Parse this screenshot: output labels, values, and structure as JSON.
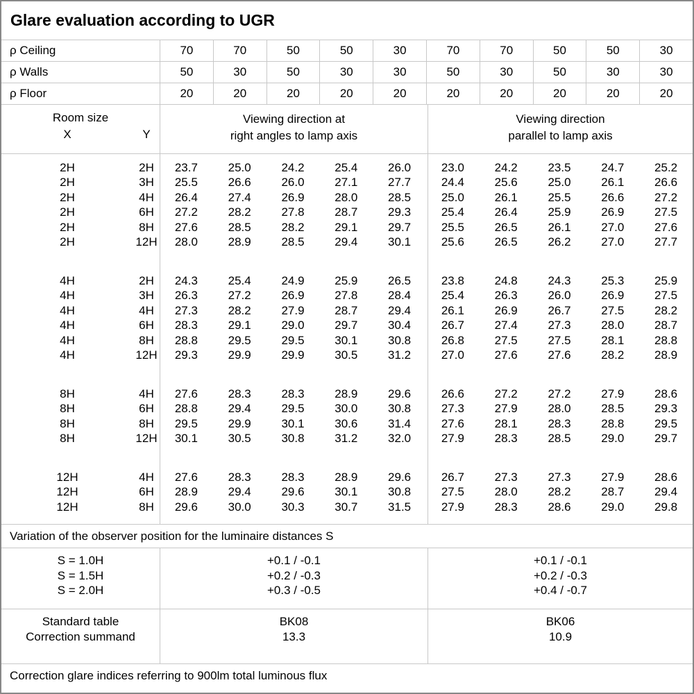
{
  "title": "Glare evaluation according to UGR",
  "reflectance_rows": [
    {
      "label": "ρ Ceiling",
      "values": [
        "70",
        "70",
        "50",
        "50",
        "30",
        "70",
        "70",
        "50",
        "50",
        "30"
      ]
    },
    {
      "label": "ρ Walls",
      "values": [
        "50",
        "30",
        "50",
        "30",
        "30",
        "50",
        "30",
        "50",
        "30",
        "30"
      ]
    },
    {
      "label": "ρ Floor",
      "values": [
        "20",
        "20",
        "20",
        "20",
        "20",
        "20",
        "20",
        "20",
        "20",
        "20"
      ]
    }
  ],
  "room_header": {
    "title": "Room size",
    "x_label": "X",
    "y_label": "Y",
    "right_angle_heading": [
      "Viewing direction at",
      "right angles to lamp axis"
    ],
    "parallel_heading": [
      "Viewing direction",
      "parallel to lamp axis"
    ]
  },
  "ugr_blocks": [
    {
      "rows": [
        {
          "x": "2H",
          "y": "2H",
          "right_angle": [
            "23.7",
            "25.0",
            "24.2",
            "25.4",
            "26.0"
          ],
          "parallel": [
            "23.0",
            "24.2",
            "23.5",
            "24.7",
            "25.2"
          ]
        },
        {
          "x": "2H",
          "y": "3H",
          "right_angle": [
            "25.5",
            "26.6",
            "26.0",
            "27.1",
            "27.7"
          ],
          "parallel": [
            "24.4",
            "25.6",
            "25.0",
            "26.1",
            "26.6"
          ]
        },
        {
          "x": "2H",
          "y": "4H",
          "right_angle": [
            "26.4",
            "27.4",
            "26.9",
            "28.0",
            "28.5"
          ],
          "parallel": [
            "25.0",
            "26.1",
            "25.5",
            "26.6",
            "27.2"
          ]
        },
        {
          "x": "2H",
          "y": "6H",
          "right_angle": [
            "27.2",
            "28.2",
            "27.8",
            "28.7",
            "29.3"
          ],
          "parallel": [
            "25.4",
            "26.4",
            "25.9",
            "26.9",
            "27.5"
          ]
        },
        {
          "x": "2H",
          "y": "8H",
          "right_angle": [
            "27.6",
            "28.5",
            "28.2",
            "29.1",
            "29.7"
          ],
          "parallel": [
            "25.5",
            "26.5",
            "26.1",
            "27.0",
            "27.6"
          ]
        },
        {
          "x": "2H",
          "y": "12H",
          "right_angle": [
            "28.0",
            "28.9",
            "28.5",
            "29.4",
            "30.1"
          ],
          "parallel": [
            "25.6",
            "26.5",
            "26.2",
            "27.0",
            "27.7"
          ]
        }
      ]
    },
    {
      "rows": [
        {
          "x": "4H",
          "y": "2H",
          "right_angle": [
            "24.3",
            "25.4",
            "24.9",
            "25.9",
            "26.5"
          ],
          "parallel": [
            "23.8",
            "24.8",
            "24.3",
            "25.3",
            "25.9"
          ]
        },
        {
          "x": "4H",
          "y": "3H",
          "right_angle": [
            "26.3",
            "27.2",
            "26.9",
            "27.8",
            "28.4"
          ],
          "parallel": [
            "25.4",
            "26.3",
            "26.0",
            "26.9",
            "27.5"
          ]
        },
        {
          "x": "4H",
          "y": "4H",
          "right_angle": [
            "27.3",
            "28.2",
            "27.9",
            "28.7",
            "29.4"
          ],
          "parallel": [
            "26.1",
            "26.9",
            "26.7",
            "27.5",
            "28.2"
          ]
        },
        {
          "x": "4H",
          "y": "6H",
          "right_angle": [
            "28.3",
            "29.1",
            "29.0",
            "29.7",
            "30.4"
          ],
          "parallel": [
            "26.7",
            "27.4",
            "27.3",
            "28.0",
            "28.7"
          ]
        },
        {
          "x": "4H",
          "y": "8H",
          "right_angle": [
            "28.8",
            "29.5",
            "29.5",
            "30.1",
            "30.8"
          ],
          "parallel": [
            "26.8",
            "27.5",
            "27.5",
            "28.1",
            "28.8"
          ]
        },
        {
          "x": "4H",
          "y": "12H",
          "right_angle": [
            "29.3",
            "29.9",
            "29.9",
            "30.5",
            "31.2"
          ],
          "parallel": [
            "27.0",
            "27.6",
            "27.6",
            "28.2",
            "28.9"
          ]
        }
      ]
    },
    {
      "rows": [
        {
          "x": "8H",
          "y": "4H",
          "right_angle": [
            "27.6",
            "28.3",
            "28.3",
            "28.9",
            "29.6"
          ],
          "parallel": [
            "26.6",
            "27.2",
            "27.2",
            "27.9",
            "28.6"
          ]
        },
        {
          "x": "8H",
          "y": "6H",
          "right_angle": [
            "28.8",
            "29.4",
            "29.5",
            "30.0",
            "30.8"
          ],
          "parallel": [
            "27.3",
            "27.9",
            "28.0",
            "28.5",
            "29.3"
          ]
        },
        {
          "x": "8H",
          "y": "8H",
          "right_angle": [
            "29.5",
            "29.9",
            "30.1",
            "30.6",
            "31.4"
          ],
          "parallel": [
            "27.6",
            "28.1",
            "28.3",
            "28.8",
            "29.5"
          ]
        },
        {
          "x": "8H",
          "y": "12H",
          "right_angle": [
            "30.1",
            "30.5",
            "30.8",
            "31.2",
            "32.0"
          ],
          "parallel": [
            "27.9",
            "28.3",
            "28.5",
            "29.0",
            "29.7"
          ]
        }
      ]
    },
    {
      "rows": [
        {
          "x": "12H",
          "y": "4H",
          "right_angle": [
            "27.6",
            "28.3",
            "28.3",
            "28.9",
            "29.6"
          ],
          "parallel": [
            "26.7",
            "27.3",
            "27.3",
            "27.9",
            "28.6"
          ]
        },
        {
          "x": "12H",
          "y": "6H",
          "right_angle": [
            "28.9",
            "29.4",
            "29.6",
            "30.1",
            "30.8"
          ],
          "parallel": [
            "27.5",
            "28.0",
            "28.2",
            "28.7",
            "29.4"
          ]
        },
        {
          "x": "12H",
          "y": "8H",
          "right_angle": [
            "29.6",
            "30.0",
            "30.3",
            "30.7",
            "31.5"
          ],
          "parallel": [
            "27.9",
            "28.3",
            "28.6",
            "29.0",
            "29.8"
          ]
        }
      ]
    }
  ],
  "variation_note": "Variation of the observer position for the luminaire distances S",
  "variation": {
    "labels": [
      "S = 1.0H",
      "S = 1.5H",
      "S = 2.0H"
    ],
    "right_angle": [
      "+0.1 / -0.1",
      "+0.2 / -0.3",
      "+0.3 / -0.5"
    ],
    "parallel": [
      "+0.1 / -0.1",
      "+0.2 / -0.3",
      "+0.4 / -0.7"
    ]
  },
  "standard": {
    "labels": [
      "Standard table",
      "Correction summand"
    ],
    "right_angle": [
      "BK08",
      "13.3"
    ],
    "parallel": [
      "BK06",
      "10.9"
    ]
  },
  "footer_note": "Correction glare indices referring to 900lm total luminous flux"
}
